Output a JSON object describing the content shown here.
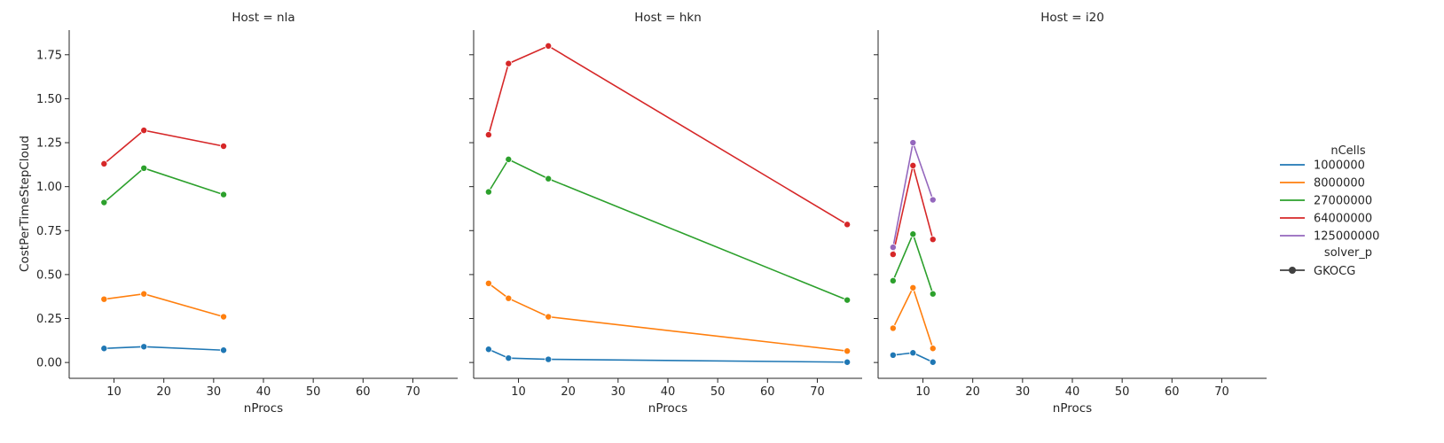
{
  "chart_data": {
    "type": "line",
    "ylabel": "CostPerTimeStepCloud",
    "ylim": [
      -0.09,
      1.89
    ],
    "xlim": [
      1,
      79
    ],
    "xticks": [
      10,
      20,
      30,
      40,
      50,
      60,
      70
    ],
    "yticks": [
      0.0,
      0.25,
      0.5,
      0.75,
      1.0,
      1.25,
      1.5,
      1.75
    ],
    "ytick_labels": [
      "0.00",
      "0.25",
      "0.50",
      "0.75",
      "1.00",
      "1.25",
      "1.50",
      "1.75"
    ],
    "grid": false,
    "legend": {
      "placement": "right",
      "hue_title": "nCells",
      "style_title": "solver_p",
      "style_entries": [
        "GKOCG"
      ]
    },
    "series_colors": {
      "1000000": "#1f77b4",
      "8000000": "#ff7f0e",
      "27000000": "#2ca02c",
      "64000000": "#d62728",
      "125000000": "#9467bd"
    },
    "series_order": [
      "1000000",
      "8000000",
      "27000000",
      "64000000",
      "125000000"
    ],
    "panels": [
      {
        "title": "Host = nla",
        "xlabel": "nProcs",
        "series": [
          {
            "name": "1000000",
            "x": [
              8,
              16,
              32
            ],
            "y": [
              0.08,
              0.09,
              0.07
            ]
          },
          {
            "name": "8000000",
            "x": [
              8,
              16,
              32
            ],
            "y": [
              0.36,
              0.39,
              0.26
            ]
          },
          {
            "name": "27000000",
            "x": [
              8,
              16,
              32
            ],
            "y": [
              0.91,
              1.105,
              0.955
            ]
          },
          {
            "name": "64000000",
            "x": [
              8,
              16,
              32
            ],
            "y": [
              1.13,
              1.32,
              1.23
            ]
          }
        ]
      },
      {
        "title": "Host = hkn",
        "xlabel": "nProcs",
        "series": [
          {
            "name": "1000000",
            "x": [
              4,
              8,
              16,
              76
            ],
            "y": [
              0.075,
              0.025,
              0.018,
              0.002
            ]
          },
          {
            "name": "8000000",
            "x": [
              4,
              8,
              16,
              76
            ],
            "y": [
              0.45,
              0.365,
              0.26,
              0.065
            ]
          },
          {
            "name": "27000000",
            "x": [
              4,
              8,
              16,
              76
            ],
            "y": [
              0.97,
              1.155,
              1.045,
              0.355
            ]
          },
          {
            "name": "64000000",
            "x": [
              4,
              8,
              16,
              76
            ],
            "y": [
              1.295,
              1.7,
              1.8,
              0.785
            ]
          }
        ]
      },
      {
        "title": "Host = i20",
        "xlabel": "nProcs",
        "series": [
          {
            "name": "1000000",
            "x": [
              4,
              8,
              12
            ],
            "y": [
              0.042,
              0.055,
              0.002
            ]
          },
          {
            "name": "8000000",
            "x": [
              4,
              8,
              12
            ],
            "y": [
              0.195,
              0.425,
              0.08
            ]
          },
          {
            "name": "27000000",
            "x": [
              4,
              8,
              12
            ],
            "y": [
              0.465,
              0.73,
              0.39
            ]
          },
          {
            "name": "64000000",
            "x": [
              4,
              8,
              12
            ],
            "y": [
              0.615,
              1.12,
              0.7
            ]
          },
          {
            "name": "125000000",
            "x": [
              4,
              8,
              12
            ],
            "y": [
              0.655,
              1.25,
              0.925
            ]
          }
        ]
      }
    ]
  }
}
